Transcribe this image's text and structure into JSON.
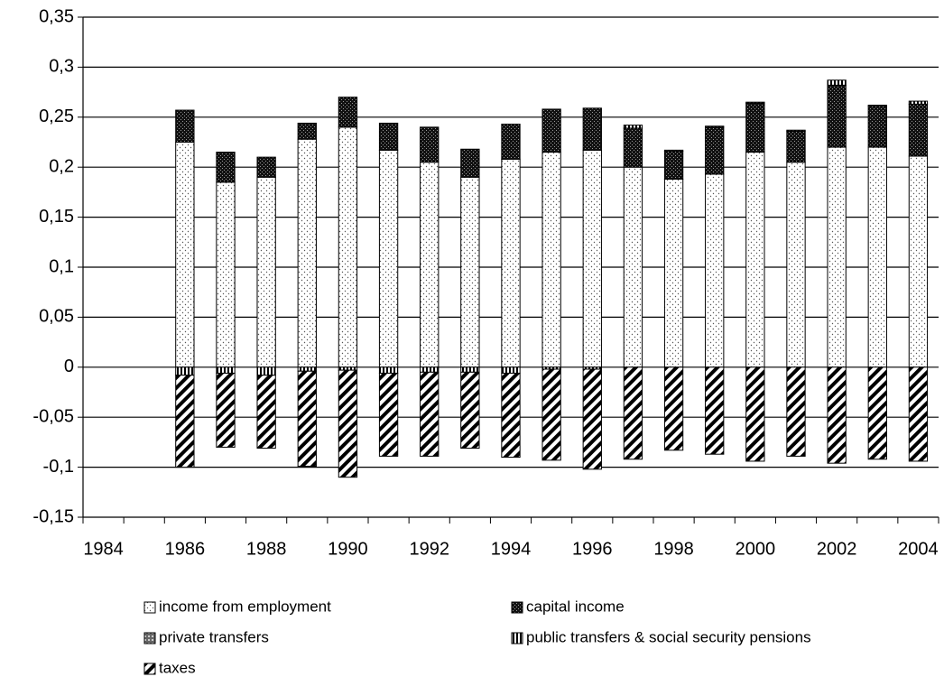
{
  "chart_data": {
    "type": "stacked-bar",
    "categories": [
      "1984",
      null,
      "1986",
      null,
      "1988",
      null,
      "1990",
      null,
      "1992",
      null,
      "1994",
      null,
      "1996",
      null,
      "1998",
      null,
      "2000",
      null,
      "2002",
      null,
      "2004"
    ],
    "series": [
      {
        "name": "income from employment",
        "values": [
          null,
          null,
          0.225,
          0.185,
          0.19,
          0.228,
          0.24,
          0.217,
          0.205,
          0.19,
          0.208,
          0.215,
          0.217,
          0.2,
          0.188,
          0.193,
          0.215,
          0.205,
          0.22,
          0.22,
          0.211
        ]
      },
      {
        "name": "capital income",
        "values": [
          null,
          null,
          0.032,
          0.03,
          0.02,
          0.016,
          0.03,
          0.027,
          0.035,
          0.028,
          0.035,
          0.043,
          0.042,
          0.039,
          0.028,
          0.047,
          0.049,
          0.031,
          0.062,
          0.041,
          0.052
        ]
      },
      {
        "name": "private transfers",
        "values": [
          null,
          null,
          0,
          0,
          0,
          0,
          0,
          0,
          0,
          0,
          0,
          0,
          0,
          0,
          0,
          0,
          0,
          0,
          0,
          0,
          0
        ]
      },
      {
        "name": "public transfers & social security pensions",
        "values": [
          null,
          null,
          -0.008,
          -0.006,
          -0.008,
          -0.004,
          -0.003,
          -0.006,
          -0.005,
          -0.005,
          -0.006,
          -0.002,
          -0.002,
          0.003,
          0.001,
          0.001,
          0.001,
          0.001,
          0.005,
          0.001,
          0.003
        ]
      },
      {
        "name": "taxes",
        "values": [
          null,
          null,
          -0.092,
          -0.074,
          -0.073,
          -0.095,
          -0.107,
          -0.083,
          -0.084,
          -0.076,
          -0.084,
          -0.091,
          -0.1,
          -0.092,
          -0.083,
          -0.087,
          -0.094,
          -0.089,
          -0.096,
          -0.092,
          -0.094
        ]
      }
    ],
    "ylim": [
      -0.15,
      0.35
    ],
    "yticks": [
      {
        "value": -0.15,
        "label": "-0,15"
      },
      {
        "value": -0.1,
        "label": "-0,1"
      },
      {
        "value": -0.05,
        "label": "-0,05"
      },
      {
        "value": 0,
        "label": "0"
      },
      {
        "value": 0.05,
        "label": "0,05"
      },
      {
        "value": 0.1,
        "label": "0,1"
      },
      {
        "value": 0.15,
        "label": "0,15"
      },
      {
        "value": 0.2,
        "label": "0,2"
      },
      {
        "value": 0.25,
        "label": "0,25"
      },
      {
        "value": 0.3,
        "label": "0,3"
      },
      {
        "value": 0.35,
        "label": "0,35"
      }
    ],
    "grid": true
  }
}
